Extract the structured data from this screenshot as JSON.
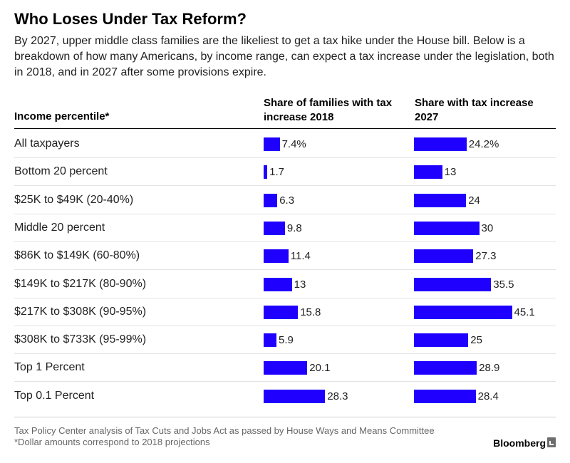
{
  "title": "Who Loses Under Tax Reform?",
  "subtitle": "By 2027, upper middle class families are the likeliest to get a tax hike under the House bill. Below is a breakdown of how many Americans, by income range, can expect a tax increase under the legislation, both in 2018, and in 2027 after some provisions expire.",
  "colors": {
    "bar": "#1f00ff"
  },
  "chart_data": {
    "type": "bar",
    "orientation": "horizontal",
    "grid": false,
    "columns": {
      "category": "Income percentile*",
      "series_2018": "Share of families with tax increase 2018",
      "series_2027": "Share with tax increase 2027"
    },
    "categories": [
      "All taxpayers",
      "Bottom 20 percent",
      "$25K to $49K (20-40%)",
      "Middle 20 percent",
      "$86K to $149K (60-80%)",
      "$149K to $217K (80-90%)",
      "$217K to $308K (90-95%)",
      "$308K to $733K (95-99%)",
      "Top 1 Percent",
      "Top 0.1 Percent"
    ],
    "series": [
      {
        "name": "Share of families with tax increase 2018",
        "values": [
          7.4,
          1.7,
          6.3,
          9.8,
          11.4,
          13,
          15.8,
          5.9,
          20.1,
          28.3
        ],
        "labels": [
          "7.4%",
          "1.7",
          "6.3",
          "9.8",
          "11.4",
          "13",
          "15.8",
          "5.9",
          "20.1",
          "28.3"
        ]
      },
      {
        "name": "Share with tax increase 2027",
        "values": [
          24.2,
          13,
          24,
          30,
          27.3,
          35.5,
          45.1,
          25,
          28.9,
          28.4
        ],
        "labels": [
          "24.2%",
          "13",
          "24",
          "30",
          "27.3",
          "35.5",
          "45.1",
          "25",
          "28.9",
          "28.4"
        ]
      }
    ]
  },
  "footer": {
    "source_line1": "Tax Policy Center analysis of Tax Cuts and Jobs Act as passed by House Ways and Means Committee",
    "source_line2": "*Dollar amounts correspond to 2018 projections",
    "brand": "Bloomberg"
  }
}
